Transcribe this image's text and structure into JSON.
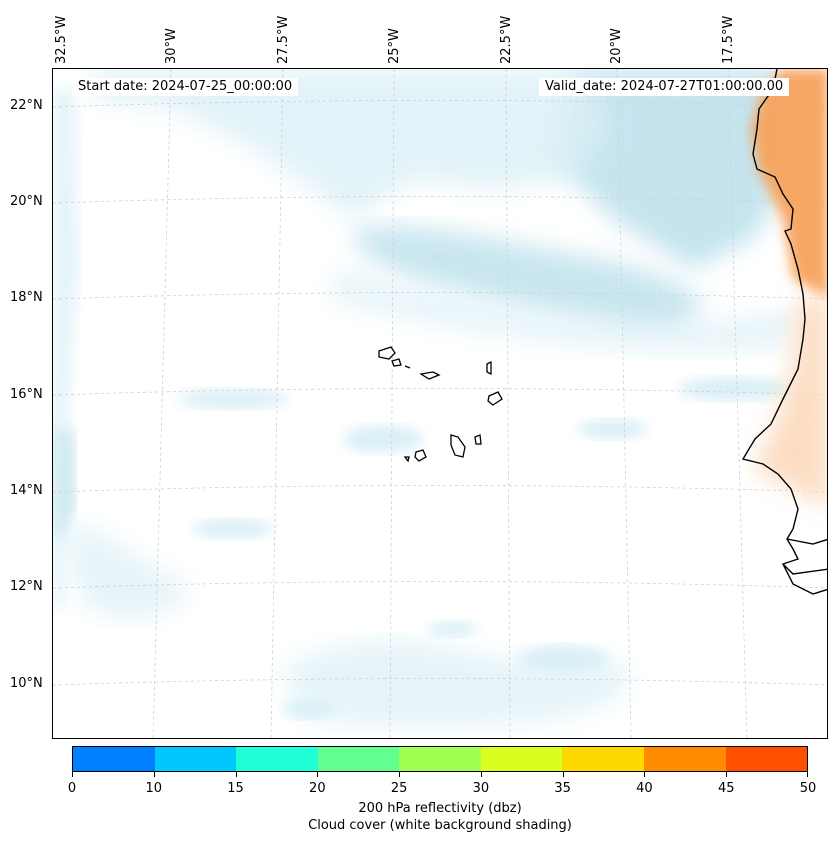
{
  "map": {
    "lon_labels": [
      "32.5°W",
      "30°W",
      "27.5°W",
      "25°W",
      "22.5°W",
      "20°W",
      "17.5°W"
    ],
    "lat_labels": [
      "22°N",
      "20°N",
      "18°N",
      "16°N",
      "14°N",
      "12°N",
      "10°N"
    ],
    "start_date": "Start date: 2024-07-25_00:00:00",
    "valid_date": "Valid_date: 2024-07-27T01:00:00.00",
    "cloud_color": "#a9d8e6",
    "land_color": "#f7a35c",
    "coast_color": "#000000"
  },
  "colorbar": {
    "title_line1": "200 hPa reflectivity (dbz)",
    "title_line2": "Cloud cover (white background shading)",
    "ticks": [
      "0",
      "10",
      "15",
      "20",
      "25",
      "30",
      "35",
      "40",
      "45",
      "50"
    ],
    "colors": [
      "#0080ff",
      "#00c8ff",
      "#20ffd8",
      "#60ff90",
      "#a0ff50",
      "#d8ff20",
      "#ffd800",
      "#ff8c00",
      "#ff5000"
    ]
  }
}
